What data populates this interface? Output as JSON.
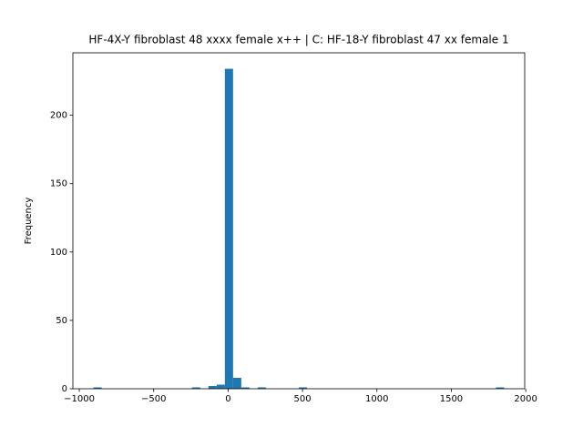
{
  "chart_data": {
    "type": "histogram",
    "title": "HF-4X-Y fibroblast 48 xxxx female x++ | C: HF-18-Y fibroblast 47 xx female 1",
    "ylabel": "Frequency",
    "color": "#1f77b4",
    "bins": [
      -905,
      -849.8,
      -794.6,
      -739.4,
      -684.2,
      -629,
      -573.8,
      -518.6,
      -463.4,
      -408.2,
      -353,
      -297.8,
      -242.6,
      -187.4,
      -132.2,
      -77,
      -21.8,
      33.4,
      88.6,
      143.8,
      199,
      254.2,
      309.4,
      364.6,
      419.8,
      475,
      530.2,
      585.4,
      640.6,
      695.8,
      751,
      806.2,
      861.4,
      916.6,
      971.8,
      1027,
      1082.2,
      1137.4,
      1192.6,
      1247.8,
      1303,
      1358.2,
      1413.4,
      1468.6,
      1523.8,
      1579,
      1634.2,
      1689.4,
      1744.6,
      1799.8,
      1855
    ],
    "counts": [
      1,
      0,
      0,
      0,
      0,
      0,
      0,
      0,
      0,
      0,
      0,
      0,
      1,
      0,
      2,
      3,
      234,
      8,
      1,
      0,
      1,
      0,
      0,
      0,
      0,
      1,
      0,
      0,
      0,
      0,
      0,
      0,
      0,
      0,
      0,
      0,
      0,
      0,
      0,
      0,
      0,
      0,
      0,
      0,
      0,
      0,
      0,
      0,
      0,
      1
    ],
    "xlim": [
      -1043,
      1993
    ],
    "ylim": [
      0,
      245.7
    ],
    "xticks": [
      {
        "value": -1000,
        "label": "−1000"
      },
      {
        "value": -500,
        "label": "−500"
      },
      0,
      500,
      1000,
      1500,
      2000
    ],
    "yticks": [
      0,
      50,
      100,
      150,
      200
    ]
  }
}
